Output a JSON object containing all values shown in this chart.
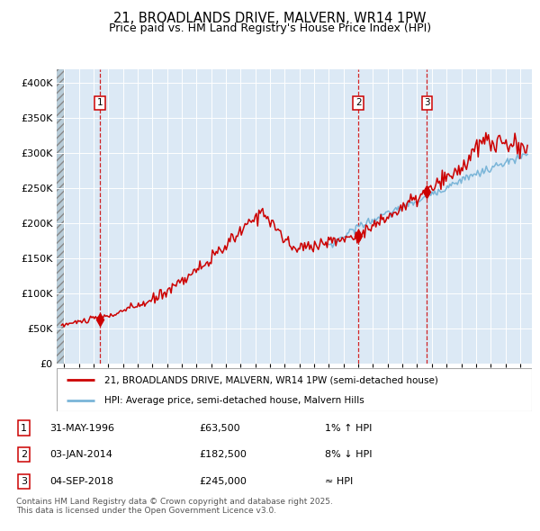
{
  "title": "21, BROADLANDS DRIVE, MALVERN, WR14 1PW",
  "subtitle": "Price paid vs. HM Land Registry's House Price Index (HPI)",
  "legend_line1": "21, BROADLANDS DRIVE, MALVERN, WR14 1PW (semi-detached house)",
  "legend_line2": "HPI: Average price, semi-detached house, Malvern Hills",
  "transactions": [
    {
      "label": "1",
      "date_num": 1996.42,
      "price": 63500,
      "date_str": "31-MAY-1996",
      "pct": "1%",
      "dir": "↑",
      "note": "HPI"
    },
    {
      "label": "2",
      "date_num": 2014.01,
      "price": 182500,
      "date_str": "03-JAN-2014",
      "pct": "8%",
      "dir": "↓",
      "note": "HPI"
    },
    {
      "label": "3",
      "date_num": 2018.67,
      "price": 245000,
      "date_str": "04-SEP-2018",
      "pct": "≈",
      "dir": "",
      "note": "HPI"
    }
  ],
  "ylim": [
    0,
    420000
  ],
  "yticks": [
    0,
    50000,
    100000,
    150000,
    200000,
    250000,
    300000,
    350000,
    400000
  ],
  "ytick_labels": [
    "£0",
    "£50K",
    "£100K",
    "£150K",
    "£200K",
    "£250K",
    "£300K",
    "£350K",
    "£400K"
  ],
  "xlim_start": 1993.5,
  "xlim_end": 2025.8,
  "hpi_color": "#7ab5d8",
  "price_color": "#cc0000",
  "bg_color": "#dce9f5",
  "grid_color": "#ffffff",
  "dashed_line_color": "#cc0000",
  "footer": "Contains HM Land Registry data © Crown copyright and database right 2025.\nThis data is licensed under the Open Government Licence v3.0."
}
